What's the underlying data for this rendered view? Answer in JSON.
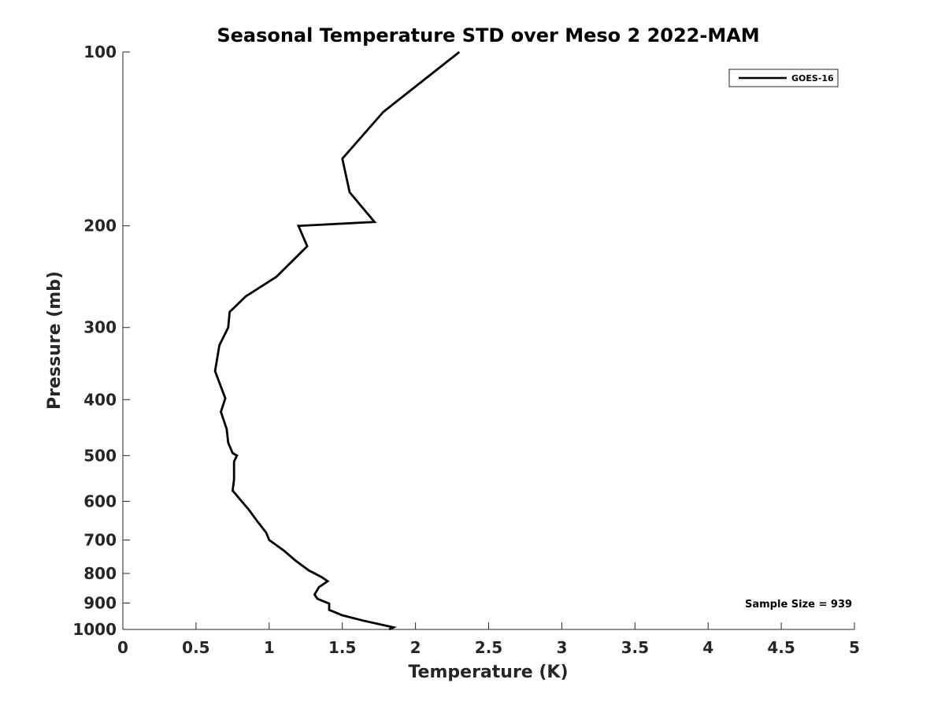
{
  "chart_data": {
    "type": "line",
    "title": "Seasonal Temperature STD over Meso 2  2022-MAM",
    "xlabel": "Temperature (K)",
    "ylabel": "Pressure (mb)",
    "xlim": [
      0,
      5
    ],
    "ylim": [
      100,
      1000
    ],
    "yscale": "log",
    "y_reversed": true,
    "grid": false,
    "x_ticks": [
      0,
      0.5,
      1,
      1.5,
      2,
      2.5,
      3,
      3.5,
      4,
      4.5,
      5
    ],
    "x_tick_labels": [
      "0",
      "0.5",
      "1",
      "1.5",
      "2",
      "2.5",
      "3",
      "3.5",
      "4",
      "4.5",
      "5"
    ],
    "y_ticks": [
      100,
      200,
      300,
      400,
      500,
      600,
      700,
      800,
      900,
      1000
    ],
    "y_tick_labels": [
      "100",
      "200",
      "300",
      "400",
      "500",
      "600",
      "700",
      "800",
      "900",
      "1000"
    ],
    "legend": {
      "position": "top-right",
      "entries": [
        "GOES-16"
      ]
    },
    "annotation": "Sample Size = 939",
    "series": [
      {
        "name": "GOES-16",
        "color": "#000000",
        "x": [
          2.3,
          1.78,
          1.5,
          1.55,
          1.72,
          1.2,
          1.26,
          1.05,
          0.84,
          0.73,
          0.72,
          0.66,
          0.63,
          0.7,
          0.67,
          0.71,
          0.72,
          0.75,
          0.78,
          0.76,
          0.76,
          0.75,
          0.8,
          0.86,
          0.92,
          0.98,
          1.0,
          1.1,
          1.18,
          1.27,
          1.36,
          1.4,
          1.34,
          1.31,
          1.33,
          1.41,
          1.41,
          1.5,
          1.64,
          1.85,
          1.82
        ],
        "y": [
          100,
          127,
          153,
          175,
          197,
          200,
          217,
          245,
          265,
          282,
          300,
          322,
          357,
          398,
          420,
          450,
          475,
          495,
          500,
          512,
          550,
          575,
          595,
          620,
          650,
          680,
          700,
          730,
          760,
          790,
          812,
          825,
          845,
          870,
          885,
          902,
          925,
          945,
          965,
          992,
          1000
        ]
      }
    ]
  }
}
